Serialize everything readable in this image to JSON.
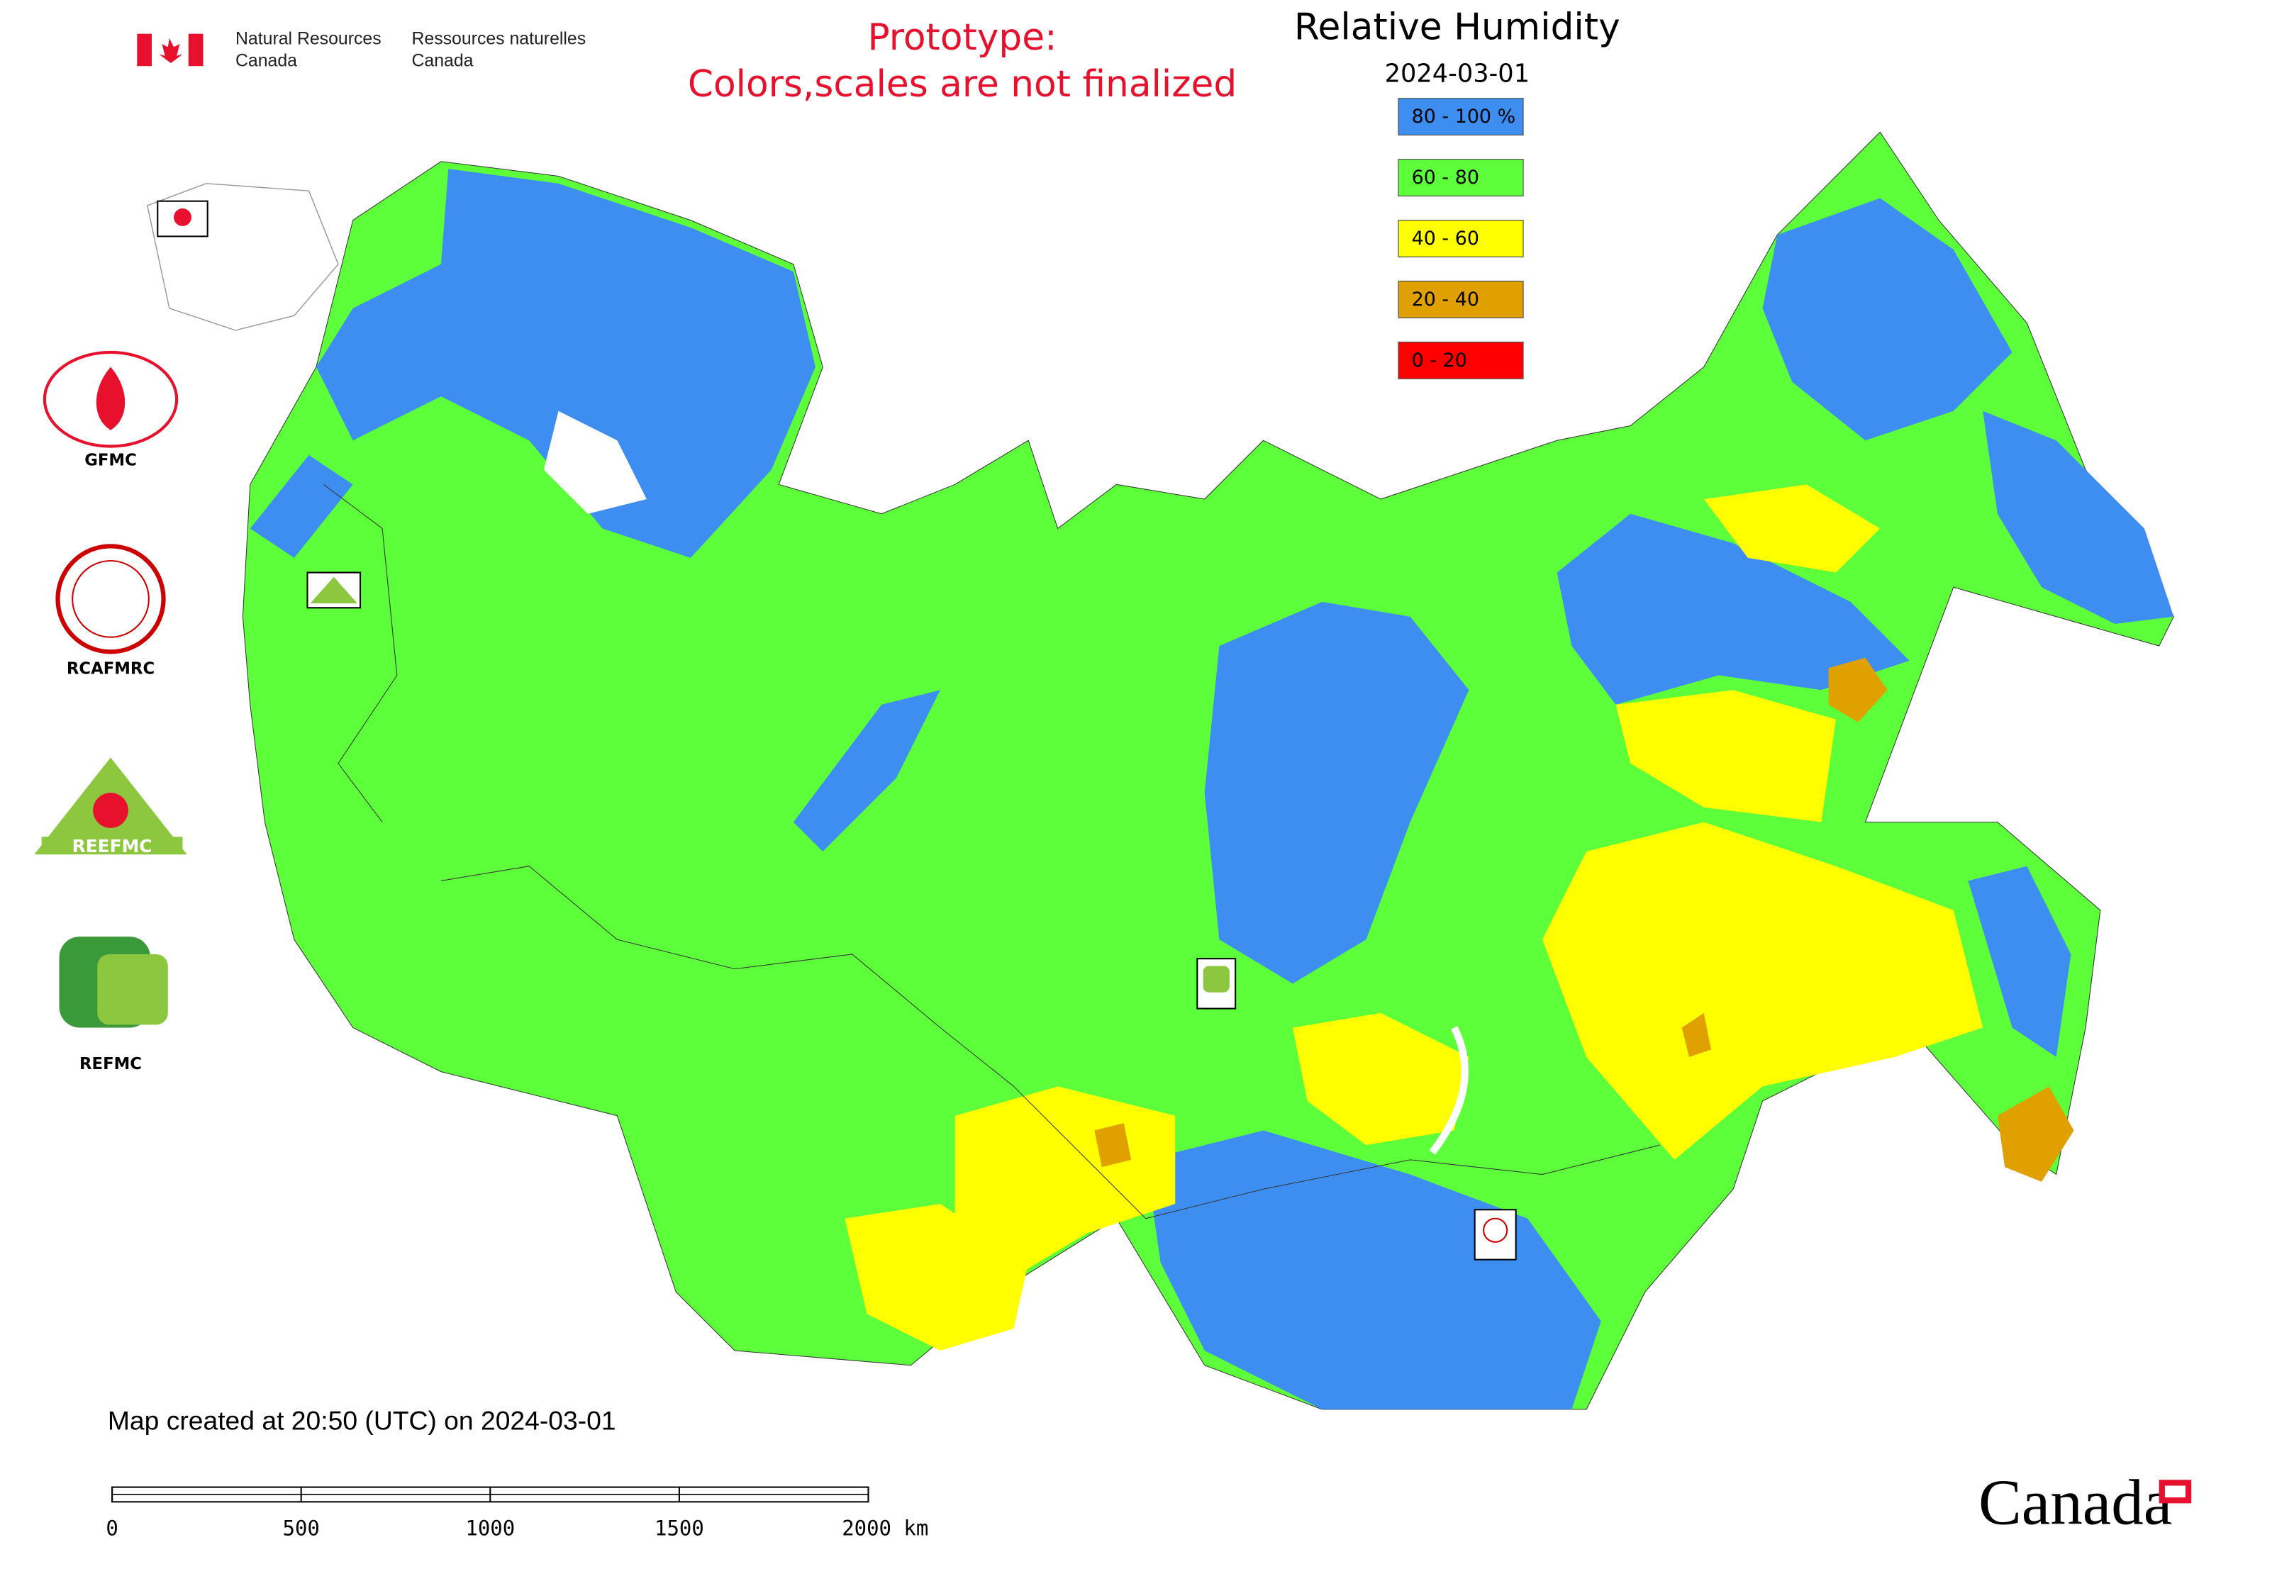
{
  "header": {
    "department_en": [
      "Natural Resources",
      "Canada"
    ],
    "department_fr": [
      "Ressources naturelles",
      "Canada"
    ],
    "notice": [
      "Prototype:",
      "Colors,scales are not finalized"
    ]
  },
  "map": {
    "title": "Relative Humidity",
    "date": "2024-03-01",
    "legend": [
      {
        "label": "80 - 100 %",
        "color": "#3d8ef0"
      },
      {
        "label": "60 - 80",
        "color": "#5cff3a"
      },
      {
        "label": "40 - 60",
        "color": "#ffff00"
      },
      {
        "label": "20 - 40",
        "color": "#e0a000"
      },
      {
        "label": "0 - 20",
        "color": "#ff0000"
      }
    ]
  },
  "logos": [
    {
      "label": "GFMC"
    },
    {
      "label": "RCAFMRC"
    },
    {
      "label": "REEFMC"
    },
    {
      "label": "REFMC"
    }
  ],
  "footer": {
    "created": "Map created at 20:50 (UTC) on 2024-03-01",
    "scale_labels": [
      "0",
      "500",
      "1000",
      "1500",
      "2000 km"
    ],
    "wordmark": "Canada"
  }
}
